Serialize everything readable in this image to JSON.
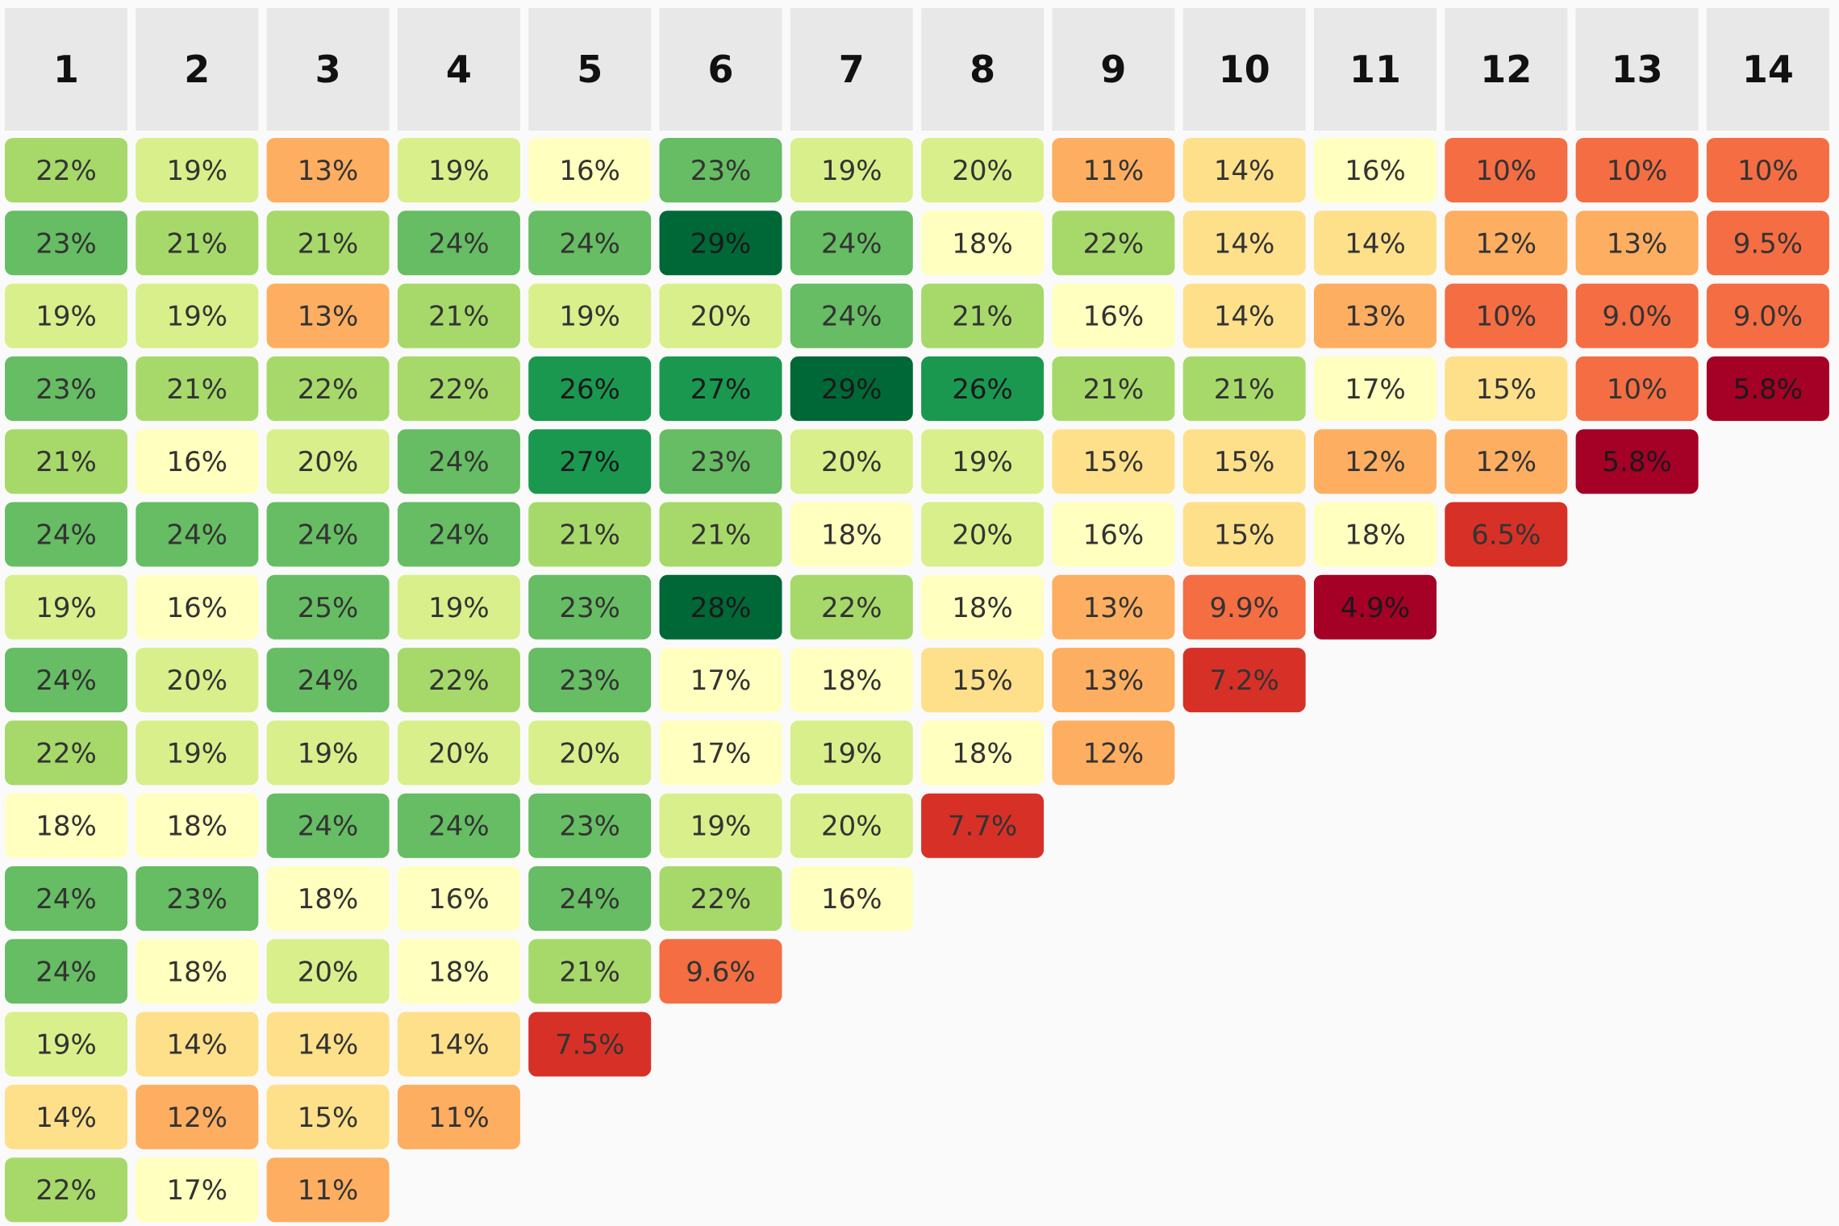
{
  "chart_data": {
    "type": "heatmap",
    "title": "",
    "xlabel": "",
    "ylabel": "",
    "columns": [
      "1",
      "2",
      "3",
      "4",
      "5",
      "6",
      "7",
      "8",
      "9",
      "10",
      "11",
      "12",
      "13",
      "14"
    ],
    "value_unit": "percent",
    "color_scale": "red-yellow-green (low = dark red, mid = light yellow, high = dark green)",
    "color_domain": [
      4.9,
      29
    ],
    "rows": [
      {
        "values": [
          22,
          19,
          13,
          19,
          16,
          23,
          19,
          20,
          11,
          14,
          16,
          10,
          10,
          10
        ],
        "labels": [
          "22%",
          "19%",
          "13%",
          "19%",
          "16%",
          "23%",
          "19%",
          "20%",
          "11%",
          "14%",
          "16%",
          "10%",
          "10%",
          "10%"
        ]
      },
      {
        "values": [
          23,
          21,
          21,
          24,
          24,
          29,
          24,
          18,
          22,
          14,
          14,
          12,
          13,
          9.5
        ],
        "labels": [
          "23%",
          "21%",
          "21%",
          "24%",
          "24%",
          "29%",
          "24%",
          "18%",
          "22%",
          "14%",
          "14%",
          "12%",
          "13%",
          "9.5%"
        ]
      },
      {
        "values": [
          19,
          19,
          13,
          21,
          19,
          20,
          24,
          21,
          16,
          14,
          13,
          10,
          9.0,
          9.0
        ],
        "labels": [
          "19%",
          "19%",
          "13%",
          "21%",
          "19%",
          "20%",
          "24%",
          "21%",
          "16%",
          "14%",
          "13%",
          "10%",
          "9.0%",
          "9.0%"
        ]
      },
      {
        "values": [
          23,
          21,
          22,
          22,
          26,
          27,
          29,
          26,
          21,
          21,
          17,
          15,
          10,
          5.8
        ],
        "labels": [
          "23%",
          "21%",
          "22%",
          "22%",
          "26%",
          "27%",
          "29%",
          "26%",
          "21%",
          "21%",
          "17%",
          "15%",
          "10%",
          "5.8%"
        ]
      },
      {
        "values": [
          21,
          16,
          20,
          24,
          27,
          23,
          20,
          19,
          15,
          15,
          12,
          12,
          5.8
        ],
        "labels": [
          "21%",
          "16%",
          "20%",
          "24%",
          "27%",
          "23%",
          "20%",
          "19%",
          "15%",
          "15%",
          "12%",
          "12%",
          "5.8%"
        ]
      },
      {
        "values": [
          24,
          24,
          24,
          24,
          21,
          21,
          18,
          20,
          16,
          15,
          18,
          6.5
        ],
        "labels": [
          "24%",
          "24%",
          "24%",
          "24%",
          "21%",
          "21%",
          "18%",
          "20%",
          "16%",
          "15%",
          "18%",
          "6.5%"
        ]
      },
      {
        "values": [
          19,
          16,
          25,
          19,
          23,
          28,
          22,
          18,
          13,
          9.9,
          4.9
        ],
        "labels": [
          "19%",
          "16%",
          "25%",
          "19%",
          "23%",
          "28%",
          "22%",
          "18%",
          "13%",
          "9.9%",
          "4.9%"
        ]
      },
      {
        "values": [
          24,
          20,
          24,
          22,
          23,
          17,
          18,
          15,
          13,
          7.2
        ],
        "labels": [
          "24%",
          "20%",
          "24%",
          "22%",
          "23%",
          "17%",
          "18%",
          "15%",
          "13%",
          "7.2%"
        ]
      },
      {
        "values": [
          22,
          19,
          19,
          20,
          20,
          17,
          19,
          18,
          12
        ],
        "labels": [
          "22%",
          "19%",
          "19%",
          "20%",
          "20%",
          "17%",
          "19%",
          "18%",
          "12%"
        ]
      },
      {
        "values": [
          18,
          18,
          24,
          24,
          23,
          19,
          20,
          7.7
        ],
        "labels": [
          "18%",
          "18%",
          "24%",
          "24%",
          "23%",
          "19%",
          "20%",
          "7.7%"
        ]
      },
      {
        "values": [
          24,
          23,
          18,
          16,
          24,
          22,
          16
        ],
        "labels": [
          "24%",
          "23%",
          "18%",
          "16%",
          "24%",
          "22%",
          "16%"
        ]
      },
      {
        "values": [
          24,
          18,
          20,
          18,
          21,
          9.6
        ],
        "labels": [
          "24%",
          "18%",
          "20%",
          "18%",
          "21%",
          "9.6%"
        ]
      },
      {
        "values": [
          19,
          14,
          14,
          14,
          7.5
        ],
        "labels": [
          "19%",
          "14%",
          "14%",
          "14%",
          "7.5%"
        ]
      },
      {
        "values": [
          14,
          12,
          15,
          11
        ],
        "labels": [
          "14%",
          "12%",
          "15%",
          "11%"
        ]
      },
      {
        "values": [
          22,
          17,
          11
        ],
        "labels": [
          "22%",
          "17%",
          "11%"
        ]
      }
    ],
    "grid": false,
    "legend": "none"
  },
  "colors": {
    "page_background": "#fafafa",
    "header_background": "#e8e8e8",
    "header_text": "#111111",
    "scale": {
      "dark_red": "#a50026",
      "red": "#d73027",
      "orange_red": "#f46d43",
      "orange": "#fdae61",
      "light_orange": "#fee08b",
      "light_yellow": "#ffffbf",
      "light_green": "#d9ef8b",
      "green": "#a6d96a",
      "mid_green": "#66bd63",
      "deep_green": "#1a9850",
      "dark_green": "#006837"
    }
  }
}
